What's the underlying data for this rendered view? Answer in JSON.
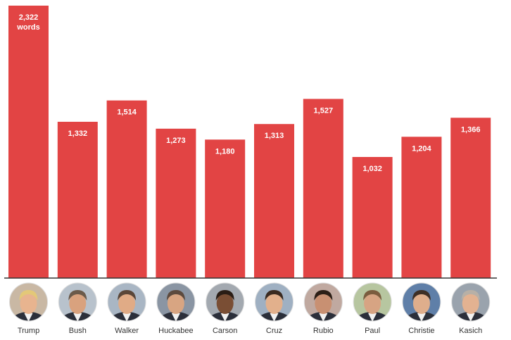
{
  "chart_data": {
    "type": "bar",
    "categories": [
      "Trump",
      "Bush",
      "Walker",
      "Huckabee",
      "Carson",
      "Cruz",
      "Rubio",
      "Paul",
      "Christie",
      "Kasich"
    ],
    "values": [
      2322,
      1332,
      1514,
      1273,
      1180,
      1313,
      1527,
      1032,
      1204,
      1366
    ],
    "data_labels": [
      "2,322",
      "1,332",
      "1,514",
      "1,273",
      "1,180",
      "1,313",
      "1,527",
      "1,032",
      "1,204",
      "1,366"
    ],
    "unit_label": "words",
    "title": "",
    "xlabel": "",
    "ylabel": "",
    "ylim": [
      0,
      2322
    ],
    "grid": false,
    "bar_color": "#e24444",
    "baseline_color": "#333333",
    "avatar_icon": "candidate-portrait-icon"
  }
}
